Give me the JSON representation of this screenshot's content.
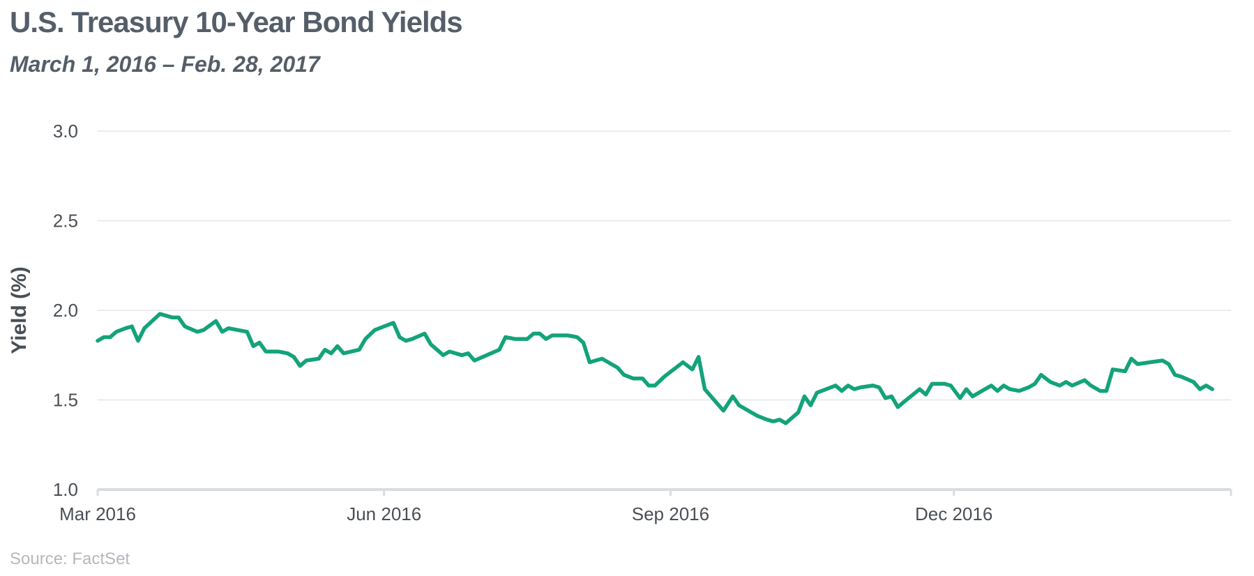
{
  "title": "U.S. Treasury 10-Year Bond Yields",
  "subtitle": "March 1, 2016 – Feb. 28, 2017",
  "source": "Source: FactSet",
  "colors": {
    "line": "#13a37a",
    "grid": "#e3e6e9",
    "axis": "#dadde0",
    "text": "#555e68"
  },
  "chart_data": {
    "type": "line",
    "ylabel": "Yield (%)",
    "xlabel": "",
    "ylim": [
      1.0,
      3.0
    ],
    "xlim": [
      "2016-03-01",
      "2017-02-28"
    ],
    "y_ticks": [
      {
        "value": 1.0,
        "label": "1.0"
      },
      {
        "value": 1.5,
        "label": "1.5"
      },
      {
        "value": 2.0,
        "label": "2.0"
      },
      {
        "value": 2.5,
        "label": "2.5"
      },
      {
        "value": 3.0,
        "label": "3.0"
      }
    ],
    "x_ticks": [
      {
        "date": "2016-03-01",
        "label": "Mar 2016"
      },
      {
        "date": "2016-06-01",
        "label": "Jun 2016"
      },
      {
        "date": "2016-09-01",
        "label": "Sep 2016"
      },
      {
        "date": "2016-12-01",
        "label": "Dec 2016"
      }
    ],
    "grid": true,
    "series": [
      {
        "name": "",
        "points": [
          [
            "2016-03-01",
            1.83
          ],
          [
            "2016-03-03",
            1.85
          ],
          [
            "2016-03-05",
            1.85
          ],
          [
            "2016-03-07",
            1.88
          ],
          [
            "2016-03-10",
            1.9
          ],
          [
            "2016-03-12",
            1.91
          ],
          [
            "2016-03-14",
            1.83
          ],
          [
            "2016-03-16",
            1.9
          ],
          [
            "2016-03-21",
            1.98
          ],
          [
            "2016-03-25",
            1.96
          ],
          [
            "2016-03-27",
            1.96
          ],
          [
            "2016-03-29",
            1.91
          ],
          [
            "2016-04-02",
            1.88
          ],
          [
            "2016-04-04",
            1.89
          ],
          [
            "2016-04-08",
            1.94
          ],
          [
            "2016-04-10",
            1.88
          ],
          [
            "2016-04-12",
            1.9
          ],
          [
            "2016-04-18",
            1.88
          ],
          [
            "2016-04-20",
            1.8
          ],
          [
            "2016-04-22",
            1.82
          ],
          [
            "2016-04-24",
            1.77
          ],
          [
            "2016-04-28",
            1.77
          ],
          [
            "2016-05-01",
            1.76
          ],
          [
            "2016-05-03",
            1.74
          ],
          [
            "2016-05-05",
            1.69
          ],
          [
            "2016-05-07",
            1.72
          ],
          [
            "2016-05-11",
            1.73
          ],
          [
            "2016-05-13",
            1.78
          ],
          [
            "2016-05-15",
            1.76
          ],
          [
            "2016-05-17",
            1.8
          ],
          [
            "2016-05-19",
            1.76
          ],
          [
            "2016-05-24",
            1.78
          ],
          [
            "2016-05-26",
            1.84
          ],
          [
            "2016-05-29",
            1.89
          ],
          [
            "2016-06-01",
            1.91
          ],
          [
            "2016-06-04",
            1.93
          ],
          [
            "2016-06-06",
            1.85
          ],
          [
            "2016-06-08",
            1.83
          ],
          [
            "2016-06-10",
            1.84
          ],
          [
            "2016-06-14",
            1.87
          ],
          [
            "2016-06-16",
            1.81
          ],
          [
            "2016-06-18",
            1.78
          ],
          [
            "2016-06-20",
            1.75
          ],
          [
            "2016-06-22",
            1.77
          ],
          [
            "2016-06-26",
            1.75
          ],
          [
            "2016-06-28",
            1.76
          ],
          [
            "2016-06-30",
            1.72
          ],
          [
            "2016-07-04",
            1.75
          ],
          [
            "2016-07-08",
            1.78
          ],
          [
            "2016-07-10",
            1.85
          ],
          [
            "2016-07-13",
            1.84
          ],
          [
            "2016-07-17",
            1.84
          ],
          [
            "2016-07-19",
            1.87
          ],
          [
            "2016-07-21",
            1.87
          ],
          [
            "2016-07-23",
            1.84
          ],
          [
            "2016-07-25",
            1.86
          ],
          [
            "2016-07-30",
            1.86
          ],
          [
            "2016-08-02",
            1.85
          ],
          [
            "2016-08-04",
            1.82
          ],
          [
            "2016-08-06",
            1.71
          ],
          [
            "2016-08-10",
            1.73
          ],
          [
            "2016-08-13",
            1.7
          ],
          [
            "2016-08-15",
            1.68
          ],
          [
            "2016-08-17",
            1.64
          ],
          [
            "2016-08-20",
            1.62
          ],
          [
            "2016-08-23",
            1.62
          ],
          [
            "2016-08-25",
            1.58
          ],
          [
            "2016-08-27",
            1.58
          ],
          [
            "2016-08-30",
            1.63
          ],
          [
            "2016-09-05",
            1.71
          ],
          [
            "2016-09-08",
            1.67
          ],
          [
            "2016-09-10",
            1.74
          ],
          [
            "2016-09-12",
            1.56
          ],
          [
            "2016-09-18",
            1.44
          ],
          [
            "2016-09-21",
            1.52
          ],
          [
            "2016-09-23",
            1.47
          ],
          [
            "2016-09-29",
            1.41
          ],
          [
            "2016-10-02",
            1.39
          ],
          [
            "2016-10-04",
            1.38
          ],
          [
            "2016-10-06",
            1.39
          ],
          [
            "2016-10-08",
            1.37
          ],
          [
            "2016-10-12",
            1.43
          ],
          [
            "2016-10-14",
            1.52
          ],
          [
            "2016-10-16",
            1.47
          ],
          [
            "2016-10-18",
            1.54
          ],
          [
            "2016-10-24",
            1.58
          ],
          [
            "2016-10-26",
            1.55
          ],
          [
            "2016-10-28",
            1.58
          ],
          [
            "2016-10-30",
            1.56
          ],
          [
            "2016-11-01",
            1.57
          ],
          [
            "2016-11-05",
            1.58
          ],
          [
            "2016-11-07",
            1.57
          ],
          [
            "2016-11-09",
            1.51
          ],
          [
            "2016-11-11",
            1.52
          ],
          [
            "2016-11-13",
            1.46
          ],
          [
            "2016-11-15",
            1.49
          ],
          [
            "2016-11-20",
            1.56
          ],
          [
            "2016-11-22",
            1.53
          ],
          [
            "2016-11-24",
            1.59
          ],
          [
            "2016-11-28",
            1.59
          ],
          [
            "2016-11-30",
            1.58
          ],
          [
            "2016-12-03",
            1.51
          ],
          [
            "2016-12-05",
            1.56
          ],
          [
            "2016-12-07",
            1.52
          ],
          [
            "2016-12-09",
            1.54
          ],
          [
            "2016-12-13",
            1.58
          ],
          [
            "2016-12-15",
            1.55
          ],
          [
            "2016-12-17",
            1.58
          ],
          [
            "2016-12-19",
            1.56
          ],
          [
            "2016-12-22",
            1.55
          ],
          [
            "2016-12-25",
            1.57
          ],
          [
            "2016-12-27",
            1.59
          ],
          [
            "2016-12-29",
            1.64
          ],
          [
            "2017-01-01",
            1.6
          ],
          [
            "2017-01-04",
            1.58
          ],
          [
            "2017-01-06",
            1.6
          ],
          [
            "2017-01-08",
            1.58
          ],
          [
            "2017-01-12",
            1.61
          ],
          [
            "2017-01-14",
            1.58
          ],
          [
            "2017-01-17",
            1.55
          ],
          [
            "2017-01-19",
            1.55
          ],
          [
            "2017-01-21",
            1.67
          ],
          [
            "2017-01-25",
            1.66
          ],
          [
            "2017-01-27",
            1.73
          ],
          [
            "2017-01-29",
            1.7
          ],
          [
            "2017-02-02",
            1.71
          ],
          [
            "2017-02-06",
            1.72
          ],
          [
            "2017-02-08",
            1.7
          ],
          [
            "2017-02-10",
            1.64
          ],
          [
            "2017-02-12",
            1.63
          ],
          [
            "2017-02-16",
            1.6
          ],
          [
            "2017-02-18",
            1.56
          ],
          [
            "2017-02-20",
            1.58
          ],
          [
            "2017-02-22",
            1.56
          ]
        ]
      }
    ]
  }
}
